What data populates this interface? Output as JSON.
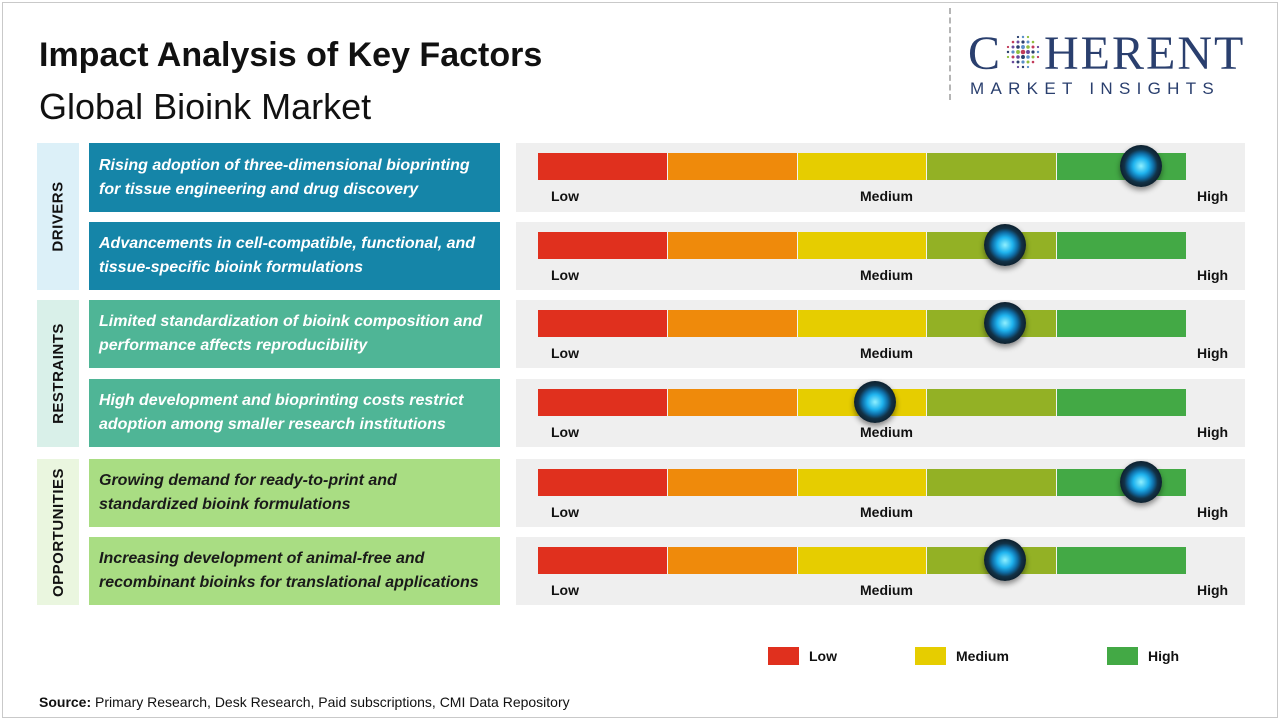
{
  "header": {
    "title": "Impact Analysis of Key Factors",
    "subtitle": "Global Bioink Market"
  },
  "logo": {
    "top_pre": "C",
    "top_post": "HERENT",
    "bottom": "MARKET INSIGHTS",
    "color": "#2a3f6e"
  },
  "colors": {
    "segments": [
      "#e0301e",
      "#ef8a0b",
      "#e6cd00",
      "#93b125",
      "#43a945"
    ],
    "drivers_factor": "#1585a8",
    "drivers_category": "#dcf0f8",
    "restraints_factor": "#4fb596",
    "restraints_category": "#d9f0e9",
    "opportunities_factor": "#a9dd83",
    "opportunities_category": "#eaf6df"
  },
  "chart_data": {
    "type": "bar",
    "scale": [
      "Low",
      "Medium",
      "High"
    ],
    "categories": [
      {
        "name": "DRIVERS",
        "factors": [
          {
            "text": "Rising adoption of three-dimensional bioprinting for tissue engineering and drug discovery",
            "impact": 0.93
          },
          {
            "text": "Advancements in cell-compatible, functional, and tissue-specific bioink formulations",
            "impact": 0.72
          }
        ]
      },
      {
        "name": "RESTRAINTS",
        "factors": [
          {
            "text": "Limited standardization of bioink composition and performance affects reproducibility",
            "impact": 0.72
          },
          {
            "text": "High development and bioprinting costs restrict adoption among smaller research institutions",
            "impact": 0.52
          }
        ]
      },
      {
        "name": "OPPORTUNITIES",
        "factors": [
          {
            "text": "Growing demand for ready-to-print and standardized bioink formulations",
            "impact": 0.93
          },
          {
            "text": "Increasing development of animal-free and recombinant bioinks for translational applications",
            "impact": 0.72
          }
        ]
      }
    ],
    "legend": [
      {
        "label": "Low",
        "color": "#e0301e"
      },
      {
        "label": "Medium",
        "color": "#e6cd00"
      },
      {
        "label": "High",
        "color": "#43a945"
      }
    ]
  },
  "source": {
    "label": "Source:",
    "text": " Primary Research, Desk Research, Paid subscriptions, CMI Data Repository"
  }
}
